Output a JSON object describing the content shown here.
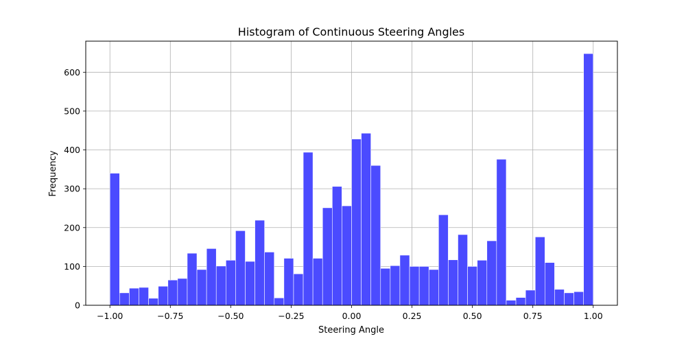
{
  "chart_data": {
    "type": "bar",
    "title": "Histogram of Continuous Steering Angles",
    "xlabel": "Steering Angle",
    "ylabel": "Frequency",
    "xlim": [
      -1.1,
      1.1
    ],
    "ylim": [
      0,
      680
    ],
    "xticks": [
      -1.0,
      -0.75,
      -0.5,
      -0.25,
      0.0,
      0.25,
      0.5,
      0.75,
      1.0
    ],
    "xtick_labels": [
      "−1.00",
      "−0.75",
      "−0.50",
      "−0.25",
      "0.00",
      "0.25",
      "0.50",
      "0.75",
      "1.00"
    ],
    "yticks": [
      0,
      100,
      200,
      300,
      400,
      500,
      600
    ],
    "ytick_labels": [
      "0",
      "100",
      "200",
      "300",
      "400",
      "500",
      "600"
    ],
    "grid": true,
    "bar_color": "#4b4bff",
    "bin_range": [
      -1.0,
      1.0
    ],
    "values": [
      340,
      32,
      44,
      46,
      18,
      49,
      65,
      69,
      134,
      92,
      146,
      101,
      116,
      192,
      113,
      219,
      137,
      19,
      121,
      81,
      394,
      121,
      251,
      306,
      256,
      428,
      443,
      360,
      95,
      102,
      129,
      100,
      100,
      92,
      233,
      117,
      182,
      100,
      116,
      166,
      376,
      13,
      20,
      39,
      176,
      110,
      41,
      32,
      35,
      648
    ]
  }
}
